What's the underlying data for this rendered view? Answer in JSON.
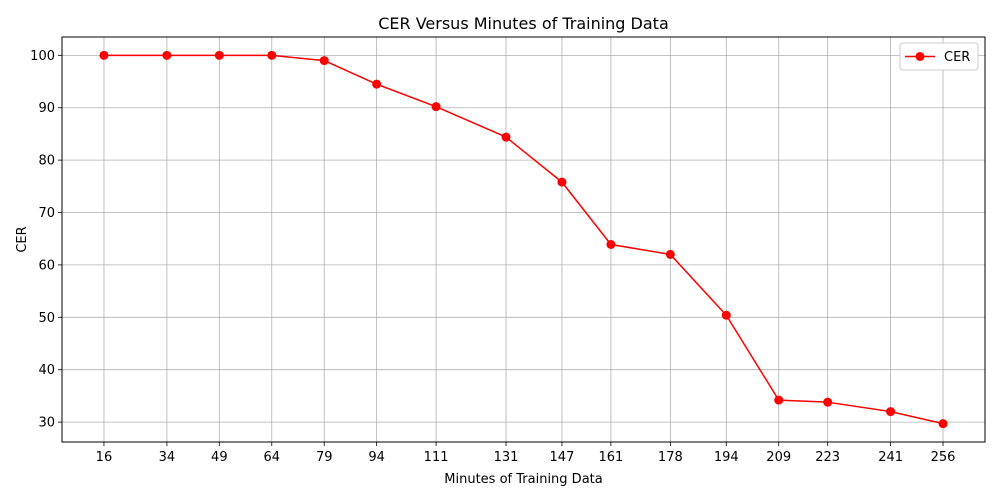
{
  "chart_data": {
    "type": "line",
    "title": "CER Versus Minutes of Training Data",
    "xlabel": "Minutes of Training Data",
    "ylabel": "CER",
    "x": [
      16,
      34,
      49,
      64,
      79,
      94,
      111,
      131,
      147,
      161,
      178,
      194,
      209,
      223,
      241,
      256
    ],
    "xticks": [
      "16",
      "34",
      "49",
      "64",
      "79",
      "94",
      "111",
      "131",
      "147",
      "161",
      "178",
      "194",
      "209",
      "223",
      "241",
      "256"
    ],
    "series": [
      {
        "name": "CER",
        "color": "#ff0000",
        "marker": "circle",
        "values": [
          100.0,
          100.0,
          100.0,
          100.0,
          99.0,
          94.5,
          90.2,
          84.4,
          75.8,
          63.9,
          62.0,
          50.4,
          34.2,
          33.8,
          32.0,
          29.7
        ]
      }
    ],
    "yticks": [
      30,
      40,
      50,
      60,
      70,
      80,
      90,
      100
    ],
    "xlim": [
      4.0,
      268.0
    ],
    "ylim": [
      26.2,
      103.5
    ],
    "grid": true,
    "legend_position": "top-right",
    "colors": {
      "grid": "#b0b0b0",
      "axis": "#000000"
    }
  }
}
